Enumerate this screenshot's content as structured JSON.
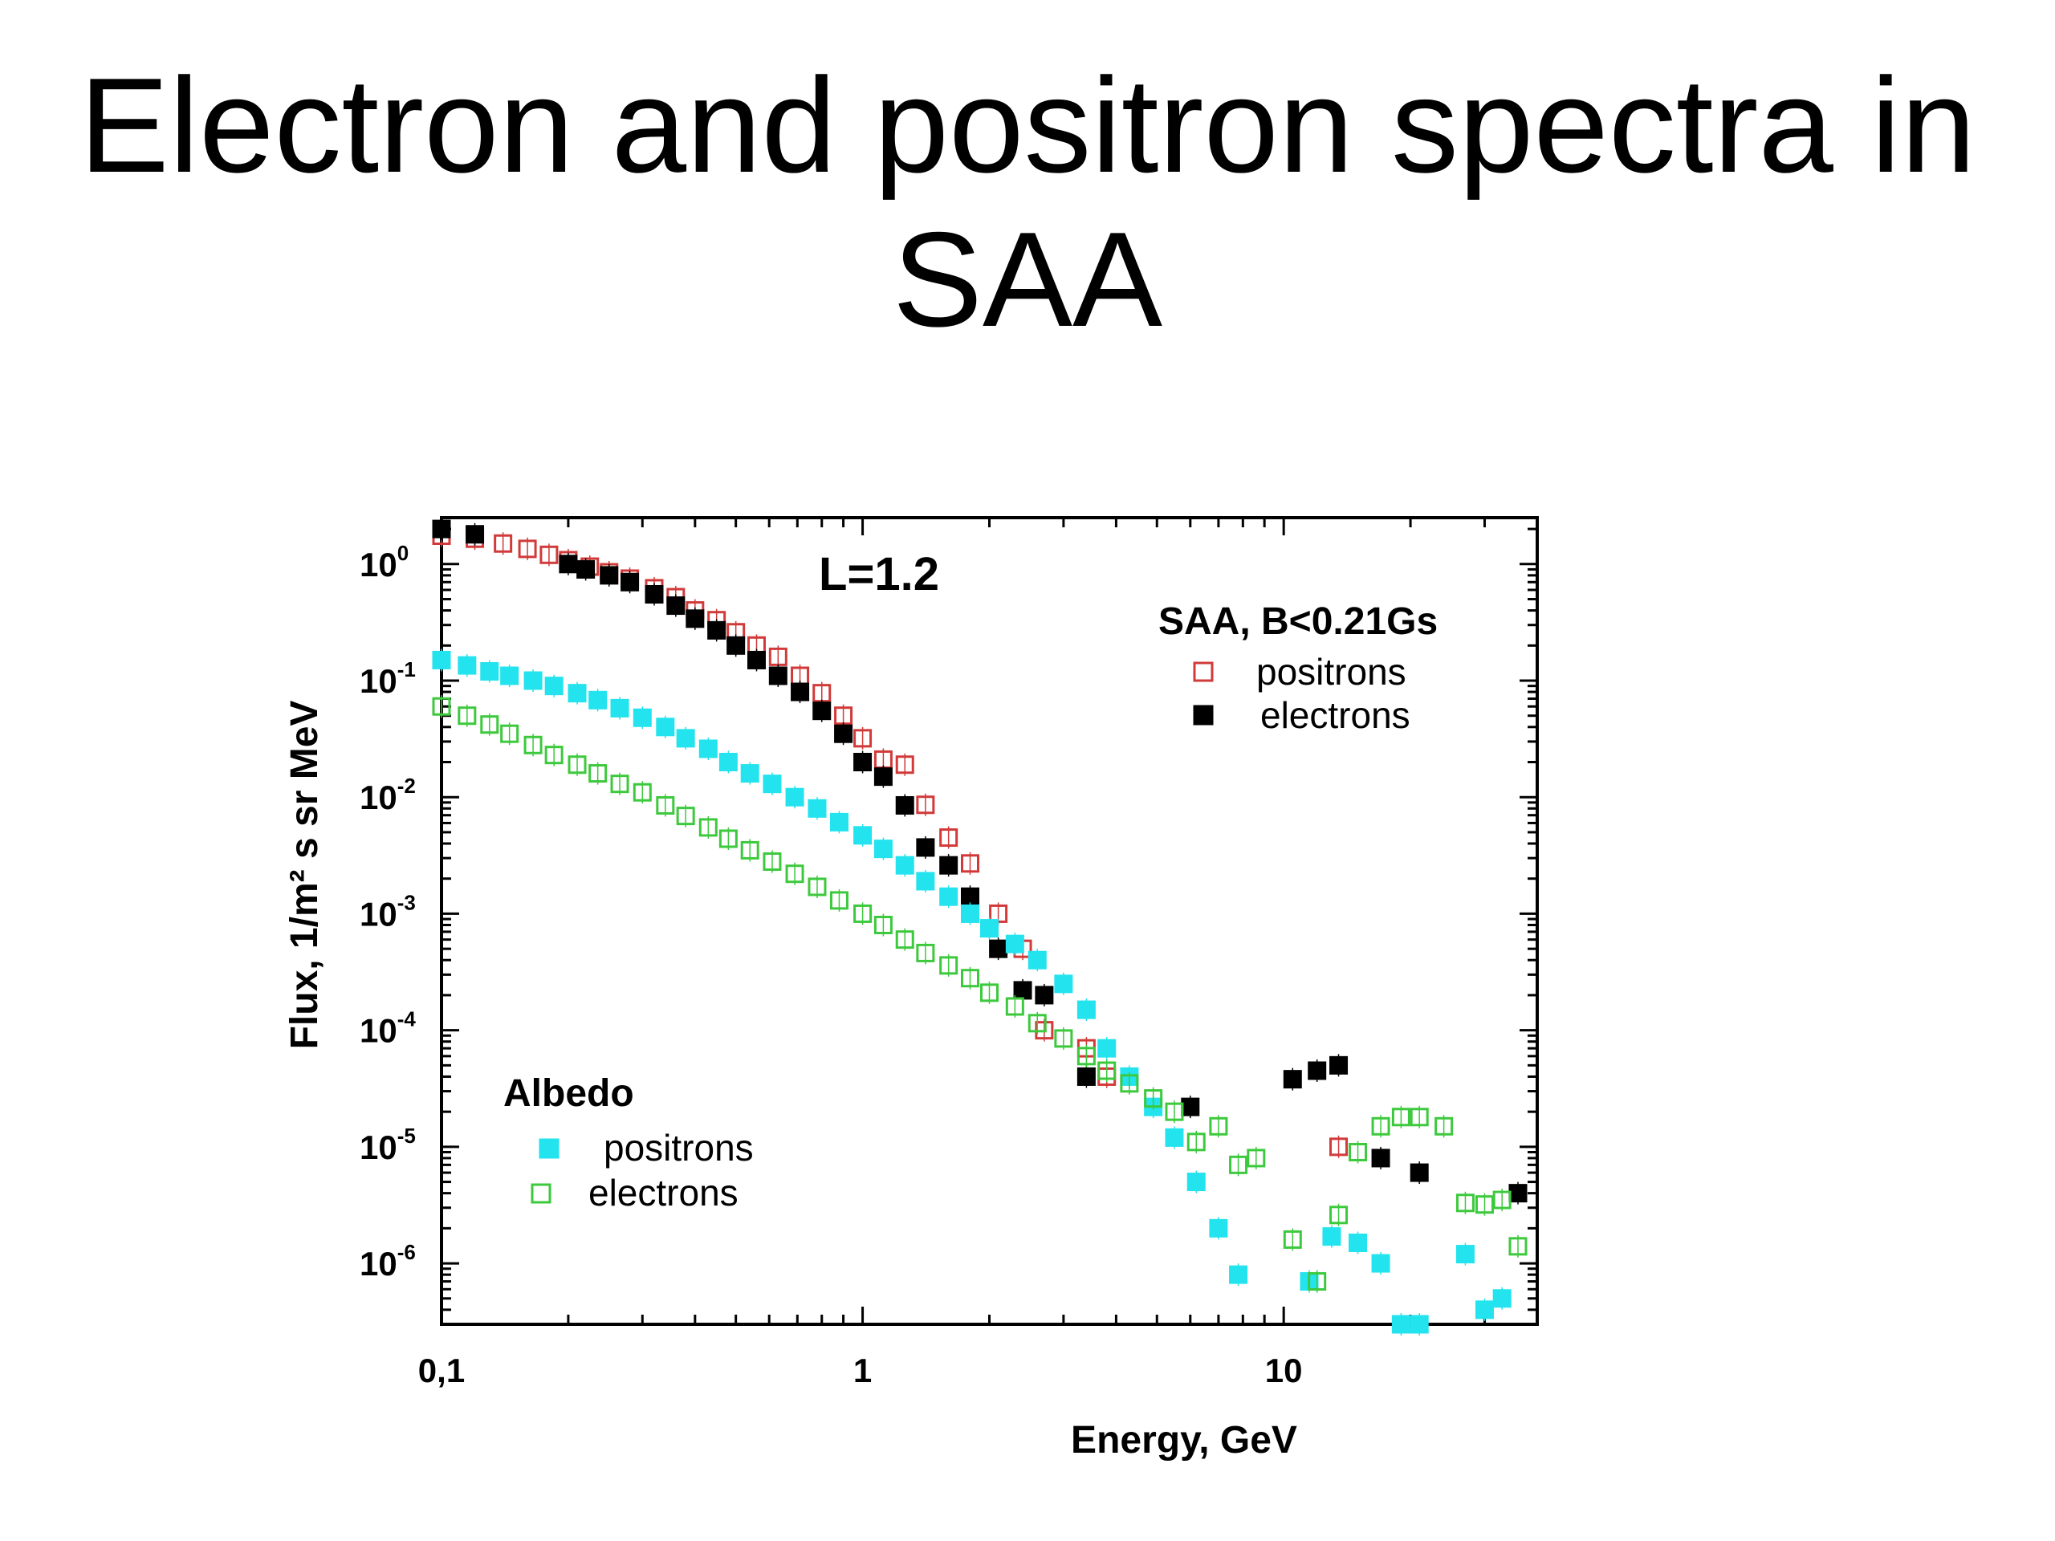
{
  "slide": {
    "title_line1": "Electron and positron spectra in",
    "title_line2": "SAA"
  },
  "chart_data": {
    "type": "scatter",
    "x_scale": "log",
    "y_scale": "log",
    "xlabel": "Energy, GeV",
    "ylabel": "Flux, 1/m² s sr MeV",
    "xlim": [
      0.1,
      40
    ],
    "ylim": [
      3e-07,
      2.5
    ],
    "x_ticks": [
      {
        "value": 0.1,
        "label": "0,1"
      },
      {
        "value": 1,
        "label": "1"
      },
      {
        "value": 10,
        "label": "10"
      }
    ],
    "y_ticks": [
      {
        "value": 1,
        "base": "10",
        "exp": "0"
      },
      {
        "value": 0.1,
        "base": "10",
        "exp": "-1"
      },
      {
        "value": 0.01,
        "base": "10",
        "exp": "-2"
      },
      {
        "value": 0.001,
        "base": "10",
        "exp": "-3"
      },
      {
        "value": 0.0001,
        "base": "10",
        "exp": "-4"
      },
      {
        "value": 1e-05,
        "base": "10",
        "exp": "-5"
      },
      {
        "value": 1e-06,
        "base": "10",
        "exp": "-6"
      }
    ],
    "annotation": "L=1.2",
    "legend_groups": [
      {
        "title": "SAA, B<0.21Gs",
        "placement": "top-right",
        "entries": [
          "positrons",
          "electrons"
        ]
      },
      {
        "title": "Albedo",
        "placement": "bottom-left",
        "entries": [
          "positrons",
          "electrons"
        ]
      }
    ],
    "series": [
      {
        "name": "positrons",
        "group": "SAA, B<0.21Gs",
        "marker": "open-square",
        "color": "#d23a3a",
        "x": [
          0.1,
          0.12,
          0.14,
          0.16,
          0.18,
          0.2,
          0.225,
          0.25,
          0.28,
          0.32,
          0.36,
          0.4,
          0.45,
          0.5,
          0.56,
          0.63,
          0.71,
          0.8,
          0.9,
          1.0,
          1.12,
          1.26,
          1.41,
          1.6,
          1.8,
          2.1,
          2.4,
          2.7,
          3.4,
          3.8,
          13.5
        ],
        "y": [
          1.75,
          1.65,
          1.5,
          1.35,
          1.2,
          1.08,
          0.95,
          0.85,
          0.75,
          0.62,
          0.52,
          0.4,
          0.33,
          0.26,
          0.2,
          0.16,
          0.11,
          0.078,
          0.05,
          0.032,
          0.021,
          0.019,
          0.0086,
          0.0045,
          0.0027,
          0.001,
          0.0005,
          0.0001,
          7e-05,
          4e-05,
          1e-05
        ]
      },
      {
        "name": "electrons",
        "group": "SAA, B<0.21Gs",
        "marker": "filled-square",
        "color": "#000000",
        "x": [
          0.1,
          0.12,
          0.2,
          0.22,
          0.25,
          0.28,
          0.32,
          0.36,
          0.4,
          0.45,
          0.5,
          0.56,
          0.63,
          0.71,
          0.8,
          0.9,
          1.0,
          1.12,
          1.26,
          1.41,
          1.6,
          1.8,
          2.1,
          2.4,
          2.7,
          3.4,
          6.0,
          10.5,
          12.0,
          13.5,
          17.0,
          21.0,
          36.0
        ],
        "y": [
          2.0,
          1.8,
          1.0,
          0.9,
          0.8,
          0.7,
          0.55,
          0.44,
          0.34,
          0.27,
          0.2,
          0.15,
          0.11,
          0.08,
          0.055,
          0.035,
          0.02,
          0.015,
          0.0085,
          0.0037,
          0.0026,
          0.0014,
          0.0005,
          0.00022,
          0.0002,
          4e-05,
          2.2e-05,
          3.8e-05,
          4.5e-05,
          5e-05,
          8e-06,
          6e-06,
          4e-06
        ]
      },
      {
        "name": "positrons",
        "group": "Albedo",
        "marker": "filled-square",
        "color": "#22e3ee",
        "x": [
          0.1,
          0.115,
          0.13,
          0.145,
          0.165,
          0.185,
          0.21,
          0.235,
          0.265,
          0.3,
          0.34,
          0.38,
          0.43,
          0.48,
          0.54,
          0.61,
          0.69,
          0.78,
          0.88,
          1.0,
          1.12,
          1.26,
          1.41,
          1.6,
          1.8,
          2.0,
          2.3,
          2.6,
          3.0,
          3.4,
          3.8,
          4.3,
          4.9,
          5.5,
          6.2,
          7.0,
          7.8,
          11.5,
          13.0,
          15.0,
          17.0,
          19.0,
          21.0,
          27.0,
          30.0,
          33.0
        ],
        "y": [
          0.15,
          0.135,
          0.12,
          0.11,
          0.1,
          0.09,
          0.078,
          0.068,
          0.058,
          0.048,
          0.04,
          0.032,
          0.026,
          0.02,
          0.016,
          0.013,
          0.01,
          0.008,
          0.0061,
          0.0047,
          0.0036,
          0.0026,
          0.0019,
          0.0014,
          0.001,
          0.00075,
          0.00055,
          0.0004,
          0.00025,
          0.00015,
          7e-05,
          4e-05,
          2.2e-05,
          1.2e-05,
          5e-06,
          2e-06,
          8e-07,
          7e-07,
          1.7e-06,
          1.5e-06,
          1e-06,
          3e-07,
          3e-07,
          1.2e-06,
          4e-07,
          5e-07
        ]
      },
      {
        "name": "electrons",
        "group": "Albedo",
        "marker": "open-square",
        "color": "#3dc93d",
        "x": [
          0.1,
          0.115,
          0.13,
          0.145,
          0.165,
          0.185,
          0.21,
          0.235,
          0.265,
          0.3,
          0.34,
          0.38,
          0.43,
          0.48,
          0.54,
          0.61,
          0.69,
          0.78,
          0.88,
          1.0,
          1.12,
          1.26,
          1.41,
          1.6,
          1.8,
          2.0,
          2.3,
          2.6,
          3.0,
          3.4,
          3.8,
          4.3,
          4.9,
          5.5,
          6.2,
          7.0,
          7.8,
          8.6,
          10.5,
          12.0,
          13.5,
          15.0,
          17.0,
          19.0,
          21.0,
          24.0,
          27.0,
          30.0,
          33.0,
          36.0
        ],
        "y": [
          0.06,
          0.05,
          0.042,
          0.035,
          0.028,
          0.023,
          0.019,
          0.016,
          0.013,
          0.011,
          0.0085,
          0.0069,
          0.0055,
          0.0044,
          0.0035,
          0.0028,
          0.0022,
          0.0017,
          0.0013,
          0.001,
          0.0008,
          0.0006,
          0.00046,
          0.00036,
          0.00028,
          0.00021,
          0.00016,
          0.000115,
          8.5e-05,
          6e-05,
          4.5e-05,
          3.5e-05,
          2.6e-05,
          2e-05,
          1.1e-05,
          1.5e-05,
          7e-06,
          8e-06,
          1.6e-06,
          7e-07,
          2.6e-06,
          9e-06,
          1.5e-05,
          1.8e-05,
          1.8e-05,
          1.5e-05,
          3.3e-06,
          3.2e-06,
          3.5e-06,
          1.4e-06
        ]
      }
    ]
  }
}
